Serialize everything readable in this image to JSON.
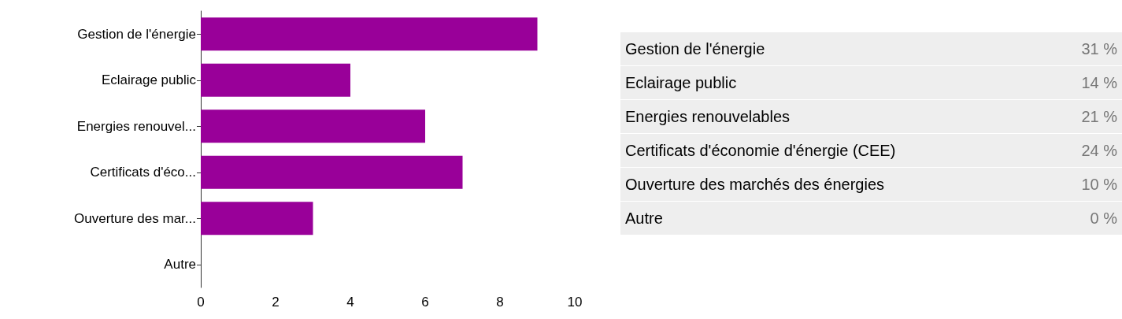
{
  "chart_data": [
    {
      "type": "bar",
      "orientation": "horizontal",
      "categories": [
        "Gestion de l'énergie",
        "Eclairage public",
        "Energies renouvel...",
        "Certificats d'éco...",
        "Ouverture des mar...",
        "Autre"
      ],
      "values": [
        9,
        4,
        6,
        7,
        3,
        0
      ],
      "color": "#990099",
      "xlim": [
        0,
        10
      ],
      "xticks": [
        0,
        2,
        4,
        6,
        8,
        10
      ],
      "grid": false
    },
    {
      "type": "other",
      "categories": [
        "Gestion de l'énergie",
        "Eclairage public",
        "Energies renouvelables",
        "Certificats d'économie d'énergie (CEE)",
        "Ouverture des marchés des énergies",
        "Autre"
      ],
      "value_labels": [
        "31 %",
        "14 %",
        "21 %",
        "24 %",
        "10 %",
        "0 %"
      ]
    }
  ]
}
